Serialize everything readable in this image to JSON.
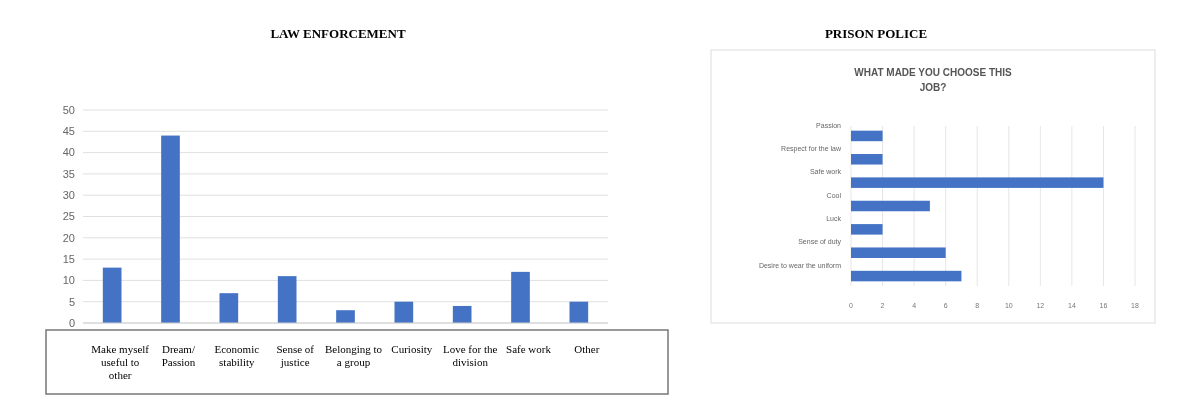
{
  "chart_data": [
    {
      "type": "bar",
      "title": "LAW ENFORCEMENT",
      "categories": [
        "Make myself useful to other",
        "Dream/ Passion",
        "Economic stability",
        "Sense of justice",
        "Belonging to a group",
        "Curiosity",
        "Love for the division",
        "Safe work",
        "Other"
      ],
      "values": [
        13,
        44,
        7,
        11,
        3,
        5,
        4,
        12,
        5
      ],
      "color": "#4472c4",
      "ylim": [
        0,
        50
      ],
      "yticks": [
        0,
        5,
        10,
        15,
        20,
        25,
        30,
        35,
        40,
        45,
        50
      ],
      "grid": "y"
    },
    {
      "type": "bar",
      "orientation": "horizontal",
      "title": "PRISON POLICE",
      "subtitle": "WHAT MADE YOU CHOOSE THIS JOB?",
      "categories": [
        "Passion",
        "Respect for the law",
        "Safe work",
        "Cool",
        "Luck",
        "Sense of duty",
        "Desire to wear the uniform"
      ],
      "values": [
        2,
        2,
        16,
        5,
        2,
        6,
        7
      ],
      "color": "#4472c4",
      "xlim": [
        0,
        18
      ],
      "xticks": [
        0,
        2,
        4,
        6,
        8,
        10,
        12,
        14,
        16,
        18
      ],
      "grid": "x"
    }
  ]
}
